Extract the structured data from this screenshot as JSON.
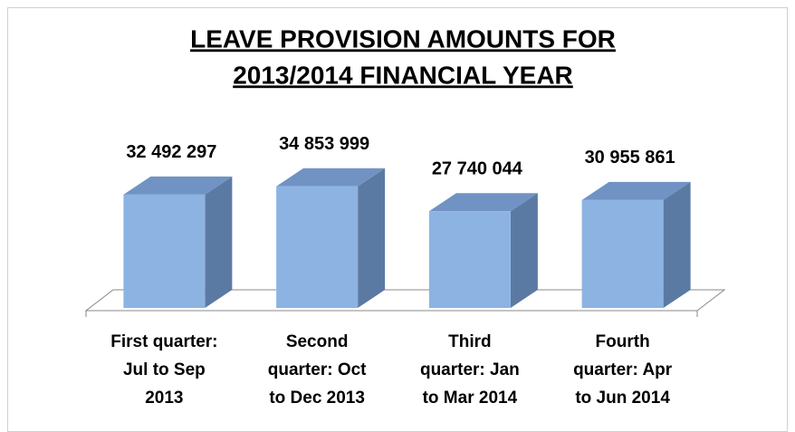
{
  "chart_data": {
    "type": "bar3d",
    "title": "LEAVE PROVISION AMOUNTS FOR",
    "subtitle": "2013/2014 FINANCIAL YEAR",
    "categories": [
      "First quarter:\nJul to Sep\n2013",
      "Second\nquarter: Oct\nto Dec 2013",
      "Third\nquarter: Jan\nto Mar 2014",
      "Fourth\nquarter: Apr\nto Jun 2014"
    ],
    "values": [
      32492297,
      34853999,
      27740044,
      30955861
    ],
    "value_labels": [
      "32 492 297",
      "34 853 999",
      "27 740 044",
      "30 955 861"
    ],
    "color": "#8db3e2",
    "ylim": [
      0,
      40000000
    ]
  }
}
